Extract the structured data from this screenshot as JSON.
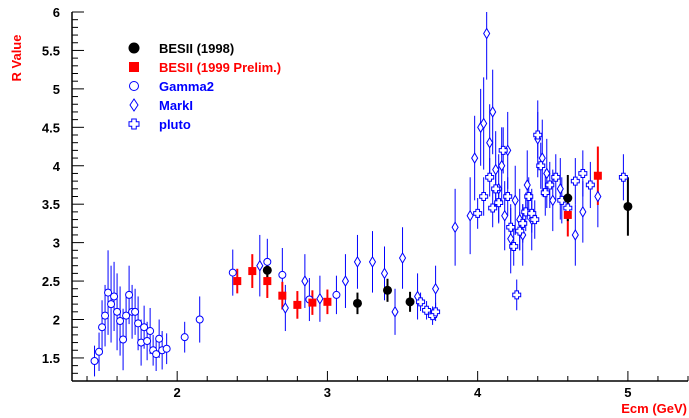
{
  "chart_data": {
    "type": "scatter",
    "title": "",
    "xlabel": "Ecm (GeV)",
    "ylabel": "R Value",
    "xlim": [
      1.3,
      5.4
    ],
    "ylim": [
      1.2,
      6.0
    ],
    "x_ticks": [
      "2",
      "3",
      "4",
      "5"
    ],
    "y_ticks": [
      "1.5",
      "2",
      "2.5",
      "3",
      "3.5",
      "4",
      "4.5",
      "5",
      "5.5",
      "6"
    ],
    "grid": false,
    "legend_position": "top-left",
    "colors": {
      "axes": "#000000",
      "axis_labels": "#ff0000",
      "besii_1998": "#000000",
      "besii_1999": "#ff0000",
      "others": "#0000ff"
    },
    "series": [
      {
        "name": "BESII (1998)",
        "marker": "filled-circle",
        "color": "#000000",
        "points": [
          {
            "x": 2.6,
            "y": 2.64,
            "err": 0.16
          },
          {
            "x": 3.2,
            "y": 2.21,
            "err": 0.14
          },
          {
            "x": 3.4,
            "y": 2.38,
            "err": 0.15
          },
          {
            "x": 3.55,
            "y": 2.23,
            "err": 0.13
          },
          {
            "x": 4.6,
            "y": 3.58,
            "err": 0.3
          },
          {
            "x": 5.0,
            "y": 3.47,
            "err": 0.38
          }
        ]
      },
      {
        "name": "BESII (1999 Prelim.)",
        "marker": "filled-square",
        "color": "#ff0000",
        "points": [
          {
            "x": 2.4,
            "y": 2.5,
            "err": 0.16
          },
          {
            "x": 2.5,
            "y": 2.63,
            "err": 0.22
          },
          {
            "x": 2.6,
            "y": 2.5,
            "err": 0.22
          },
          {
            "x": 2.7,
            "y": 2.31,
            "err": 0.18
          },
          {
            "x": 2.8,
            "y": 2.19,
            "err": 0.18
          },
          {
            "x": 2.9,
            "y": 2.22,
            "err": 0.16
          },
          {
            "x": 3.0,
            "y": 2.23,
            "err": 0.16
          },
          {
            "x": 4.6,
            "y": 3.36,
            "err": 0.28
          },
          {
            "x": 4.8,
            "y": 3.87,
            "err": 0.38
          }
        ]
      },
      {
        "name": "Gamma2",
        "marker": "open-circle",
        "color": "#0000ff",
        "points": [
          {
            "x": 1.45,
            "y": 1.46,
            "err": 0.2
          },
          {
            "x": 1.48,
            "y": 1.58,
            "err": 0.25
          },
          {
            "x": 1.5,
            "y": 1.9,
            "err": 0.35
          },
          {
            "x": 1.52,
            "y": 2.05,
            "err": 0.4
          },
          {
            "x": 1.54,
            "y": 2.35,
            "err": 0.55
          },
          {
            "x": 1.56,
            "y": 2.2,
            "err": 0.5
          },
          {
            "x": 1.58,
            "y": 2.3,
            "err": 0.45
          },
          {
            "x": 1.6,
            "y": 2.1,
            "err": 0.5
          },
          {
            "x": 1.62,
            "y": 1.98,
            "err": 0.45
          },
          {
            "x": 1.64,
            "y": 1.74,
            "err": 0.4
          },
          {
            "x": 1.66,
            "y": 2.05,
            "err": 0.3
          },
          {
            "x": 1.68,
            "y": 2.32,
            "err": 0.38
          },
          {
            "x": 1.7,
            "y": 2.1,
            "err": 0.35
          },
          {
            "x": 1.72,
            "y": 2.1,
            "err": 0.3
          },
          {
            "x": 1.74,
            "y": 1.95,
            "err": 0.35
          },
          {
            "x": 1.76,
            "y": 1.7,
            "err": 0.3
          },
          {
            "x": 1.78,
            "y": 1.9,
            "err": 0.28
          },
          {
            "x": 1.8,
            "y": 1.72,
            "err": 0.25
          },
          {
            "x": 1.82,
            "y": 1.85,
            "err": 0.3
          },
          {
            "x": 1.84,
            "y": 1.6,
            "err": 0.2
          },
          {
            "x": 1.86,
            "y": 1.55,
            "err": 0.22
          },
          {
            "x": 1.88,
            "y": 1.75,
            "err": 0.25
          },
          {
            "x": 1.9,
            "y": 1.6,
            "err": 0.25
          },
          {
            "x": 1.93,
            "y": 1.62,
            "err": 0.2
          },
          {
            "x": 2.05,
            "y": 1.77,
            "err": 0.2
          },
          {
            "x": 2.15,
            "y": 2.0,
            "err": 0.3
          },
          {
            "x": 2.37,
            "y": 2.61,
            "err": 0.3
          },
          {
            "x": 2.6,
            "y": 2.75,
            "err": 0.3
          },
          {
            "x": 2.7,
            "y": 2.58,
            "err": 0.35
          },
          {
            "x": 2.88,
            "y": 2.26,
            "err": 0.28
          },
          {
            "x": 3.06,
            "y": 2.32,
            "err": 0.25
          }
        ]
      },
      {
        "name": "MarkI",
        "marker": "open-diamond",
        "color": "#0000ff",
        "points": [
          {
            "x": 2.55,
            "y": 2.7,
            "err": 0.4
          },
          {
            "x": 2.72,
            "y": 2.15,
            "err": 0.3
          },
          {
            "x": 2.85,
            "y": 2.5,
            "err": 0.35
          },
          {
            "x": 2.95,
            "y": 2.27,
            "err": 0.3
          },
          {
            "x": 3.12,
            "y": 2.5,
            "err": 0.35
          },
          {
            "x": 3.2,
            "y": 2.75,
            "err": 0.35
          },
          {
            "x": 3.3,
            "y": 2.75,
            "err": 0.4
          },
          {
            "x": 3.38,
            "y": 2.6,
            "err": 0.35
          },
          {
            "x": 3.45,
            "y": 2.1,
            "err": 0.3
          },
          {
            "x": 3.5,
            "y": 2.8,
            "err": 0.4
          },
          {
            "x": 3.6,
            "y": 2.3,
            "err": 0.3
          },
          {
            "x": 3.72,
            "y": 2.4,
            "err": 0.3
          },
          {
            "x": 3.85,
            "y": 3.2,
            "err": 0.5
          },
          {
            "x": 3.95,
            "y": 3.35,
            "err": 0.5
          },
          {
            "x": 3.98,
            "y": 4.1,
            "err": 0.55
          },
          {
            "x": 4.02,
            "y": 4.5,
            "err": 0.5
          },
          {
            "x": 4.04,
            "y": 4.55,
            "err": 0.6
          },
          {
            "x": 4.06,
            "y": 5.72,
            "err": 0.6
          },
          {
            "x": 4.08,
            "y": 4.3,
            "err": 0.5
          },
          {
            "x": 4.1,
            "y": 4.7,
            "err": 0.55
          },
          {
            "x": 4.12,
            "y": 3.95,
            "err": 0.5
          },
          {
            "x": 4.14,
            "y": 3.7,
            "err": 0.45
          },
          {
            "x": 4.16,
            "y": 4.0,
            "err": 0.5
          },
          {
            "x": 4.18,
            "y": 3.35,
            "err": 0.45
          },
          {
            "x": 4.2,
            "y": 4.2,
            "err": 0.5
          },
          {
            "x": 4.22,
            "y": 3.05,
            "err": 0.45
          },
          {
            "x": 4.25,
            "y": 3.55,
            "err": 0.45
          },
          {
            "x": 4.28,
            "y": 3.3,
            "err": 0.4
          },
          {
            "x": 4.3,
            "y": 3.1,
            "err": 0.4
          },
          {
            "x": 4.33,
            "y": 3.75,
            "err": 0.45
          },
          {
            "x": 4.36,
            "y": 3.3,
            "err": 0.4
          },
          {
            "x": 4.4,
            "y": 4.35,
            "err": 0.5
          },
          {
            "x": 4.43,
            "y": 4.1,
            "err": 0.5
          },
          {
            "x": 4.46,
            "y": 3.9,
            "err": 0.45
          },
          {
            "x": 4.5,
            "y": 3.55,
            "err": 0.4
          },
          {
            "x": 4.55,
            "y": 3.7,
            "err": 0.4
          },
          {
            "x": 4.65,
            "y": 3.1,
            "err": 0.4
          },
          {
            "x": 4.7,
            "y": 3.4,
            "err": 0.4
          },
          {
            "x": 4.8,
            "y": 3.6,
            "err": 0.4
          }
        ]
      },
      {
        "name": "pluto",
        "marker": "open-cross",
        "color": "#0000ff",
        "points": [
          {
            "x": 3.62,
            "y": 2.23,
            "err": 0.12
          },
          {
            "x": 3.66,
            "y": 2.12,
            "err": 0.12
          },
          {
            "x": 3.7,
            "y": 2.05,
            "err": 0.12
          },
          {
            "x": 3.72,
            "y": 2.1,
            "err": 0.12
          },
          {
            "x": 4.0,
            "y": 3.38,
            "err": 0.2
          },
          {
            "x": 4.04,
            "y": 3.6,
            "err": 0.25
          },
          {
            "x": 4.08,
            "y": 3.85,
            "err": 0.25
          },
          {
            "x": 4.1,
            "y": 3.45,
            "err": 0.25
          },
          {
            "x": 4.12,
            "y": 3.7,
            "err": 0.25
          },
          {
            "x": 4.14,
            "y": 3.52,
            "err": 0.25
          },
          {
            "x": 4.17,
            "y": 4.2,
            "err": 0.3
          },
          {
            "x": 4.2,
            "y": 3.6,
            "err": 0.25
          },
          {
            "x": 4.22,
            "y": 3.2,
            "err": 0.25
          },
          {
            "x": 4.24,
            "y": 2.95,
            "err": 0.25
          },
          {
            "x": 4.26,
            "y": 2.32,
            "err": 0.2
          },
          {
            "x": 4.28,
            "y": 3.15,
            "err": 0.25
          },
          {
            "x": 4.3,
            "y": 3.25,
            "err": 0.25
          },
          {
            "x": 4.32,
            "y": 3.4,
            "err": 0.25
          },
          {
            "x": 4.34,
            "y": 3.6,
            "err": 0.25
          },
          {
            "x": 4.36,
            "y": 3.38,
            "err": 0.25
          },
          {
            "x": 4.38,
            "y": 3.3,
            "err": 0.25
          },
          {
            "x": 4.4,
            "y": 4.4,
            "err": 0.3
          },
          {
            "x": 4.42,
            "y": 4.0,
            "err": 0.3
          },
          {
            "x": 4.45,
            "y": 3.65,
            "err": 0.3
          },
          {
            "x": 4.48,
            "y": 3.75,
            "err": 0.3
          },
          {
            "x": 4.52,
            "y": 3.85,
            "err": 0.3
          },
          {
            "x": 4.56,
            "y": 3.55,
            "err": 0.3
          },
          {
            "x": 4.6,
            "y": 3.45,
            "err": 0.3
          },
          {
            "x": 4.65,
            "y": 3.8,
            "err": 0.3
          },
          {
            "x": 4.7,
            "y": 3.9,
            "err": 0.3
          },
          {
            "x": 4.75,
            "y": 3.75,
            "err": 0.3
          },
          {
            "x": 4.97,
            "y": 3.85,
            "err": 0.3
          }
        ]
      }
    ]
  }
}
